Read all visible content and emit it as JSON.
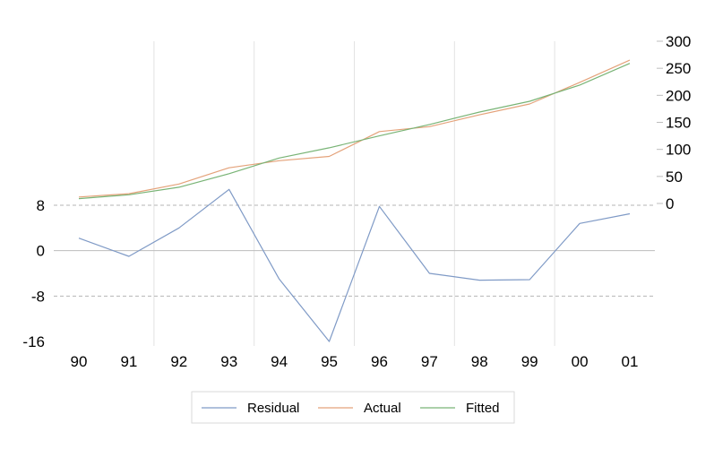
{
  "chart_data": {
    "type": "line",
    "categories": [
      "90",
      "91",
      "92",
      "93",
      "94",
      "95",
      "96",
      "97",
      "98",
      "99",
      "00",
      "01"
    ],
    "series": [
      {
        "name": "Residual",
        "axis": "left",
        "color": "#7F9AC6",
        "values": [
          2.2,
          -1.0,
          4.0,
          10.8,
          -5.0,
          -16.0,
          7.8,
          -4.0,
          -5.2,
          -5.1,
          4.8,
          6.5
        ]
      },
      {
        "name": "Actual",
        "axis": "right",
        "color": "#E4A27A",
        "values": [
          12,
          18,
          36,
          66,
          79,
          87,
          133,
          142,
          164,
          184,
          224,
          265
        ]
      },
      {
        "name": "Fitted",
        "axis": "right",
        "color": "#79B476",
        "values": [
          9,
          16,
          30,
          55,
          84,
          103,
          125,
          146,
          169,
          189,
          219,
          259
        ]
      }
    ],
    "left_axis": {
      "ticks": [
        "8",
        "0",
        "-8",
        "-16"
      ],
      "range": [
        -16,
        8
      ]
    },
    "right_axis": {
      "ticks": [
        "300",
        "250",
        "200",
        "150",
        "100",
        "50",
        "0"
      ],
      "range": [
        0,
        300
      ]
    },
    "grid": true,
    "legend_position": "bottom"
  }
}
